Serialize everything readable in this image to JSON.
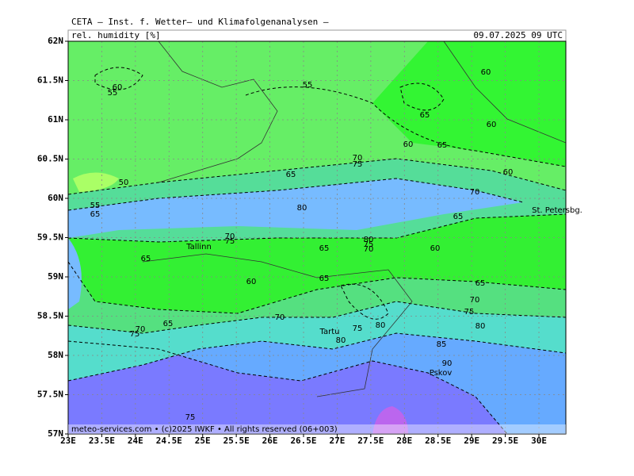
{
  "header": {
    "title": "CETA – Inst. f. Wetter– und Klimafolgenanalysen –",
    "field": "rel. humidity [%]",
    "valid_time": "09.07.2025 09 UTC"
  },
  "map": {
    "lat_labels": [
      "62N",
      "61.5N",
      "61N",
      "60.5N",
      "60N",
      "59.5N",
      "59N",
      "58.5N",
      "58N",
      "57.5N",
      "57N"
    ],
    "lon_labels": [
      "23E",
      "23.5E",
      "24E",
      "24.5E",
      "25E",
      "25.5E",
      "26E",
      "26.5E",
      "27E",
      "27.5E",
      "28E",
      "28.5E",
      "29E",
      "29.5E",
      "30E"
    ],
    "contour_labels": [
      55,
      60,
      55,
      60,
      65,
      60,
      60,
      65,
      70,
      75,
      65,
      50,
      60,
      70,
      65,
      80,
      55,
      65,
      60,
      70,
      75,
      80,
      75,
      70,
      65,
      65,
      60,
      65,
      65,
      70,
      75,
      80,
      70,
      65,
      70,
      75,
      75,
      80,
      80,
      85,
      90,
      75
    ],
    "places": [
      "Tallinn",
      "Tartu",
      "Pskov",
      "St. Petersbg."
    ]
  },
  "footer": "meteo-services.com • (c)2025 IWKF • All rights reserved (06+003)"
}
